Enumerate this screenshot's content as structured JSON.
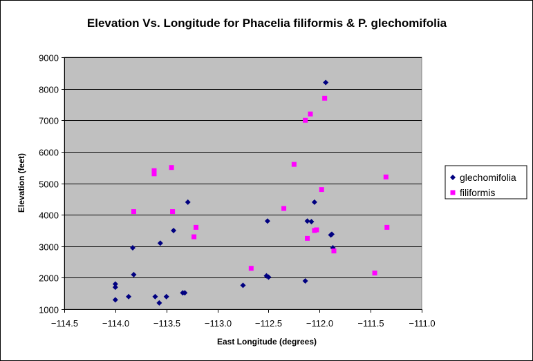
{
  "chart_data": {
    "type": "scatter",
    "title": "Elevation Vs. Longitude for Phacelia filiformis & P. glechomifolia",
    "xlabel": "East Longitude (degrees)",
    "ylabel": "Elevation (feet)",
    "xlim": [
      -114.5,
      -111.0
    ],
    "ylim": [
      1000,
      9000
    ],
    "xticks": [
      "-114.5",
      "-114.0",
      "-113.5",
      "-113.0",
      "-112.5",
      "-112.0",
      "-111.5",
      "-111.0"
    ],
    "yticks": [
      "1000",
      "2000",
      "3000",
      "4000",
      "5000",
      "6000",
      "7000",
      "8000",
      "9000"
    ],
    "grid": "horizontal major gridlines",
    "plot_background": "#C0C0C0",
    "legend_position": "right",
    "series": [
      {
        "name": "glechomifolia",
        "marker": "diamond",
        "color": "#000080",
        "points": [
          [
            -114.0,
            1800
          ],
          [
            -114.0,
            1700
          ],
          [
            -114.0,
            1300
          ],
          [
            -113.87,
            1400
          ],
          [
            -113.83,
            2950
          ],
          [
            -113.82,
            2100
          ],
          [
            -113.61,
            1400
          ],
          [
            -113.57,
            1200
          ],
          [
            -113.56,
            3100
          ],
          [
            -113.5,
            1400
          ],
          [
            -113.43,
            3500
          ],
          [
            -113.34,
            1520
          ],
          [
            -113.32,
            1520
          ],
          [
            -113.29,
            4400
          ],
          [
            -112.75,
            1760
          ],
          [
            -112.52,
            2060
          ],
          [
            -112.51,
            3800
          ],
          [
            -112.5,
            2020
          ],
          [
            -112.14,
            1900
          ],
          [
            -112.12,
            3800
          ],
          [
            -112.08,
            3780
          ],
          [
            -112.05,
            4400
          ],
          [
            -111.94,
            8200
          ],
          [
            -111.88,
            3380
          ],
          [
            -111.89,
            3360
          ],
          [
            -111.87,
            2950
          ]
        ]
      },
      {
        "name": "filiformis",
        "marker": "square",
        "color": "#FF00FF",
        "points": [
          [
            -113.82,
            4100
          ],
          [
            -113.62,
            5400
          ],
          [
            -113.62,
            5300
          ],
          [
            -113.45,
            5500
          ],
          [
            -113.44,
            4100
          ],
          [
            -113.23,
            3300
          ],
          [
            -113.21,
            3600
          ],
          [
            -112.67,
            2300
          ],
          [
            -112.35,
            4200
          ],
          [
            -112.25,
            5600
          ],
          [
            -112.14,
            7000
          ],
          [
            -112.12,
            3250
          ],
          [
            -112.09,
            7200
          ],
          [
            -112.05,
            3500
          ],
          [
            -112.03,
            3520
          ],
          [
            -111.98,
            4800
          ],
          [
            -111.95,
            7700
          ],
          [
            -111.86,
            2850
          ],
          [
            -111.46,
            2150
          ],
          [
            -111.35,
            5200
          ],
          [
            -111.34,
            3600
          ]
        ]
      }
    ]
  }
}
